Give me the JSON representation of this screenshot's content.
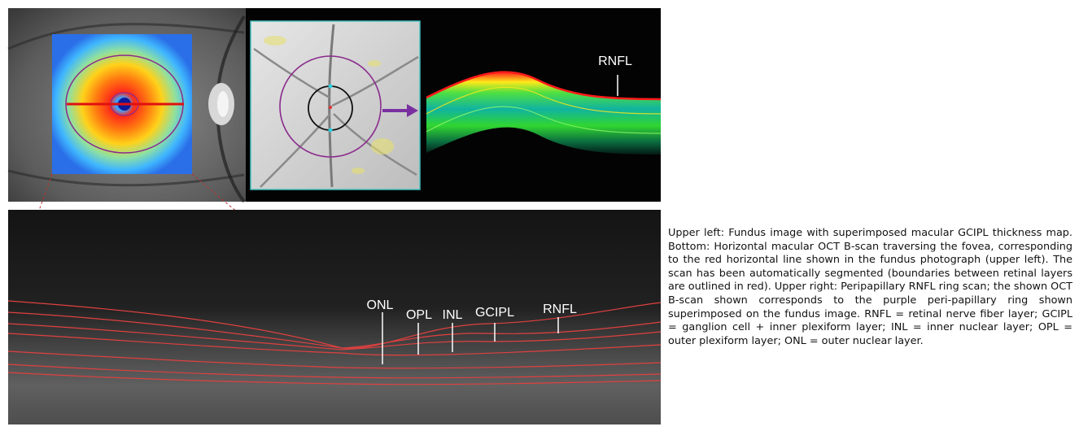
{
  "figure": {
    "labels": {
      "rnfl_top": "RNFL",
      "onl": "ONL",
      "opl": "OPL",
      "inl": "INL",
      "gcipl": "GCIPL",
      "rnfl_bottom": "RNFL"
    },
    "colors": {
      "ring": "#8a2b8c",
      "scan_line": "#e01010",
      "segmentation": "#e04040",
      "arrow": "#7a2fa0",
      "panel_border": "#49c1c1"
    }
  },
  "caption": {
    "text": "Upper left: Fundus image with superimposed macular GCIPL thickness map. Bottom: Horizontal macular OCT B-scan traversing the fovea, corresponding to the red horizontal line shown in the fundus photograph (upper left). The scan has been automatically segmented (boundaries between retinal layers are outlined in red). Upper right: Peripapillary RNFL ring scan; the shown OCT B-scan shown corresponds to the purple peri-papillary ring shown superimposed on the fundus image. RNFL = retinal nerve fiber layer; GCIPL = ganglion cell + inner plexiform layer; INL = inner nuclear layer; OPL = outer plexiform layer; ONL = outer nuclear layer."
  }
}
